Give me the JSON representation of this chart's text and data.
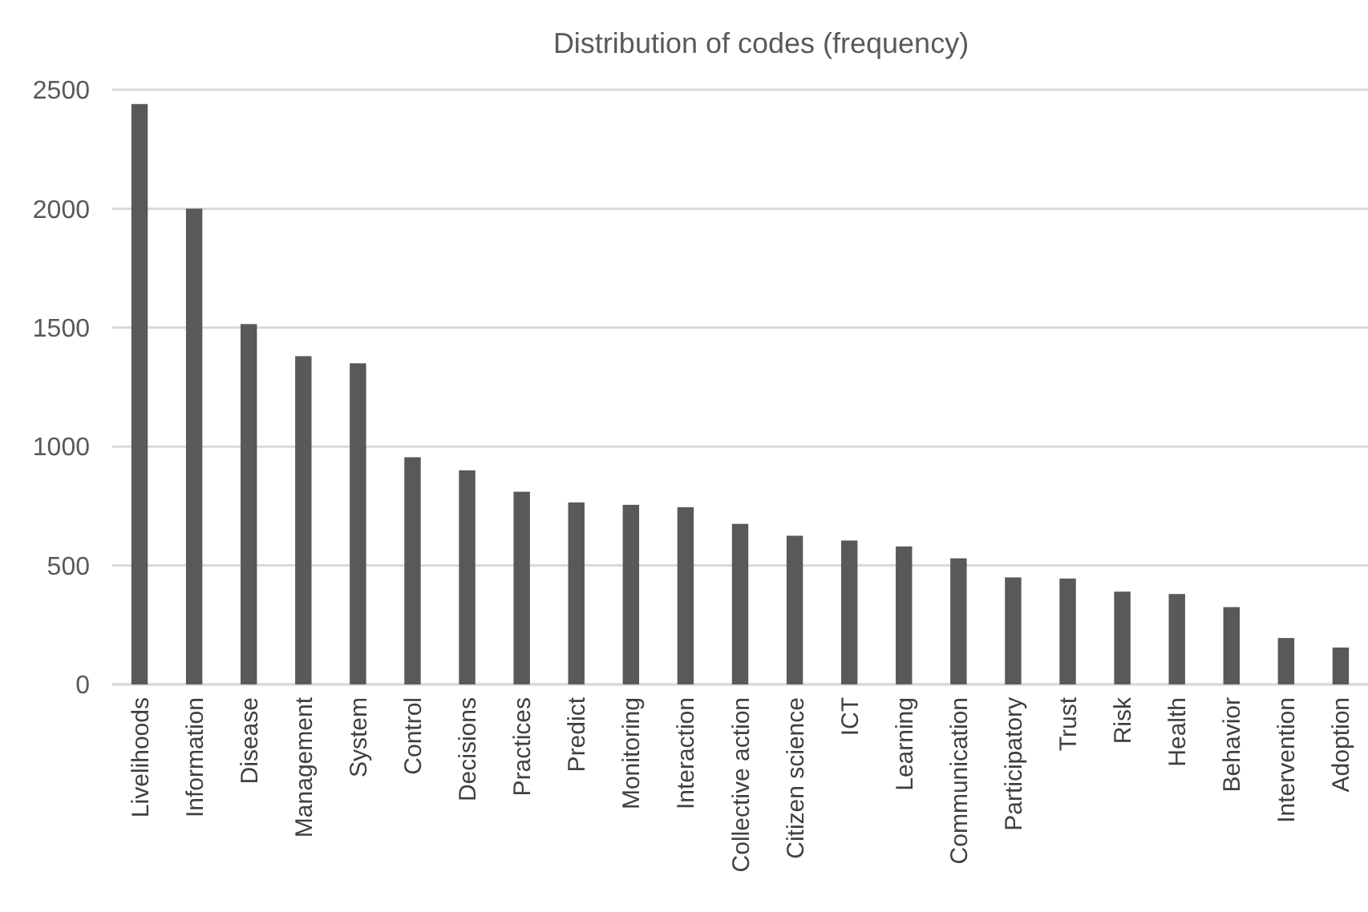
{
  "chart_data": {
    "type": "bar",
    "title": "Distribution of codes (frequency)",
    "categories": [
      "Livelihoods",
      "Information",
      "Disease",
      "Management",
      "System",
      "Control",
      "Decisions",
      "Practices",
      "Predict",
      "Monitoring",
      "Interaction",
      "Collective action",
      "Citizen science",
      "ICT",
      "Learning",
      "Communication",
      "Participatory",
      "Trust",
      "Risk",
      "Health",
      "Behavior",
      "Intervention",
      "Adoption"
    ],
    "values": [
      2440,
      2000,
      1515,
      1380,
      1350,
      955,
      900,
      810,
      765,
      755,
      745,
      675,
      625,
      605,
      580,
      530,
      450,
      445,
      390,
      380,
      325,
      195,
      155
    ],
    "color": "#595959",
    "ylim": [
      0,
      2500
    ],
    "yticks": [
      0,
      500,
      1000,
      1500,
      2000,
      2500
    ],
    "grid": "y"
  }
}
